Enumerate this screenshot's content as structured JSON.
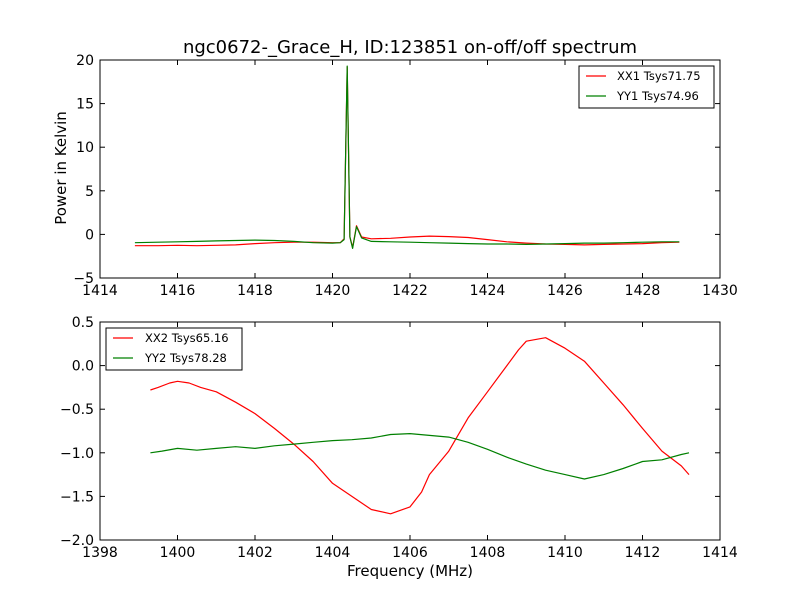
{
  "chart_data": [
    {
      "type": "line",
      "title": "ngc0672-_Grace_H, ID:123851 on-off/off spectrum",
      "xlabel": "",
      "ylabel": "Power in Kelvin",
      "xlim": [
        1414,
        1430
      ],
      "ylim": [
        -5,
        20
      ],
      "xticks": [
        1414,
        1416,
        1418,
        1420,
        1422,
        1424,
        1426,
        1428,
        1430
      ],
      "yticks": [
        -5,
        0,
        5,
        10,
        15,
        20
      ],
      "xtick_labels": [
        "1414",
        "1416",
        "1418",
        "1420",
        "1422",
        "1424",
        "1426",
        "1428",
        "1430"
      ],
      "ytick_labels": [
        "−5",
        "0",
        "5",
        "10",
        "15",
        "20"
      ],
      "grid": false,
      "legend_position": "top-right",
      "series": [
        {
          "name": "XX1 Tsys71.75",
          "color": "#ff0000",
          "points": [
            [
              1414.9,
              -1.3
            ],
            [
              1415.5,
              -1.3
            ],
            [
              1416.0,
              -1.25
            ],
            [
              1416.5,
              -1.3
            ],
            [
              1417.0,
              -1.25
            ],
            [
              1417.5,
              -1.2
            ],
            [
              1418.0,
              -1.05
            ],
            [
              1418.5,
              -0.95
            ],
            [
              1419.0,
              -0.9
            ],
            [
              1419.5,
              -0.9
            ],
            [
              1420.0,
              -0.95
            ],
            [
              1420.2,
              -0.95
            ],
            [
              1420.3,
              -0.5
            ],
            [
              1420.38,
              19.2
            ],
            [
              1420.45,
              -0.3
            ],
            [
              1420.52,
              -1.5
            ],
            [
              1420.62,
              1.0
            ],
            [
              1420.75,
              -0.3
            ],
            [
              1421.0,
              -0.5
            ],
            [
              1421.5,
              -0.45
            ],
            [
              1422.0,
              -0.3
            ],
            [
              1422.5,
              -0.2
            ],
            [
              1423.0,
              -0.25
            ],
            [
              1423.5,
              -0.35
            ],
            [
              1424.0,
              -0.6
            ],
            [
              1424.5,
              -0.85
            ],
            [
              1425.0,
              -1.0
            ],
            [
              1425.5,
              -1.1
            ],
            [
              1426.0,
              -1.15
            ],
            [
              1426.5,
              -1.2
            ],
            [
              1427.0,
              -1.15
            ],
            [
              1427.5,
              -1.1
            ],
            [
              1428.0,
              -1.05
            ],
            [
              1428.5,
              -0.95
            ],
            [
              1428.95,
              -0.9
            ]
          ]
        },
        {
          "name": "YY1 Tsys74.96",
          "color": "#008000",
          "points": [
            [
              1414.9,
              -0.95
            ],
            [
              1415.5,
              -0.9
            ],
            [
              1416.0,
              -0.85
            ],
            [
              1416.5,
              -0.8
            ],
            [
              1417.0,
              -0.75
            ],
            [
              1417.5,
              -0.7
            ],
            [
              1418.0,
              -0.65
            ],
            [
              1418.5,
              -0.7
            ],
            [
              1419.0,
              -0.8
            ],
            [
              1419.5,
              -0.95
            ],
            [
              1420.0,
              -1.0
            ],
            [
              1420.2,
              -0.95
            ],
            [
              1420.3,
              -0.6
            ],
            [
              1420.38,
              19.3
            ],
            [
              1420.45,
              -0.3
            ],
            [
              1420.52,
              -1.6
            ],
            [
              1420.62,
              0.9
            ],
            [
              1420.75,
              -0.4
            ],
            [
              1421.0,
              -0.8
            ],
            [
              1421.5,
              -0.85
            ],
            [
              1422.0,
              -0.9
            ],
            [
              1422.5,
              -0.95
            ],
            [
              1423.0,
              -1.0
            ],
            [
              1423.5,
              -1.05
            ],
            [
              1424.0,
              -1.1
            ],
            [
              1424.5,
              -1.1
            ],
            [
              1425.0,
              -1.15
            ],
            [
              1425.5,
              -1.1
            ],
            [
              1426.0,
              -1.05
            ],
            [
              1426.5,
              -1.0
            ],
            [
              1427.0,
              -1.0
            ],
            [
              1427.5,
              -0.95
            ],
            [
              1428.0,
              -0.9
            ],
            [
              1428.5,
              -0.85
            ],
            [
              1428.95,
              -0.85
            ]
          ]
        }
      ]
    },
    {
      "type": "line",
      "title": "",
      "xlabel": "Frequency (MHz)",
      "ylabel": "",
      "xlim": [
        1398,
        1414
      ],
      "ylim": [
        -2.0,
        0.5
      ],
      "xticks": [
        1398,
        1400,
        1402,
        1404,
        1406,
        1408,
        1410,
        1412,
        1414
      ],
      "yticks": [
        -2.0,
        -1.5,
        -1.0,
        -0.5,
        0.0,
        0.5
      ],
      "xtick_labels": [
        "1398",
        "1400",
        "1402",
        "1404",
        "1406",
        "1408",
        "1410",
        "1412",
        "1414"
      ],
      "ytick_labels": [
        "−2.0",
        "−1.5",
        "−1.0",
        "−0.5",
        "0.0",
        "0.5"
      ],
      "grid": false,
      "legend_position": "top-left",
      "series": [
        {
          "name": "XX2 Tsys65.16",
          "color": "#ff0000",
          "points": [
            [
              1399.3,
              -0.28
            ],
            [
              1399.5,
              -0.25
            ],
            [
              1399.8,
              -0.2
            ],
            [
              1400.0,
              -0.18
            ],
            [
              1400.3,
              -0.2
            ],
            [
              1400.6,
              -0.25
            ],
            [
              1401.0,
              -0.3
            ],
            [
              1401.5,
              -0.42
            ],
            [
              1402.0,
              -0.55
            ],
            [
              1402.5,
              -0.72
            ],
            [
              1403.0,
              -0.9
            ],
            [
              1403.5,
              -1.1
            ],
            [
              1404.0,
              -1.35
            ],
            [
              1404.5,
              -1.5
            ],
            [
              1405.0,
              -1.65
            ],
            [
              1405.5,
              -1.7
            ],
            [
              1406.0,
              -1.62
            ],
            [
              1406.3,
              -1.45
            ],
            [
              1406.5,
              -1.25
            ],
            [
              1407.0,
              -0.98
            ],
            [
              1407.5,
              -0.6
            ],
            [
              1408.0,
              -0.3
            ],
            [
              1408.5,
              0.0
            ],
            [
              1408.8,
              0.18
            ],
            [
              1409.0,
              0.28
            ],
            [
              1409.5,
              0.32
            ],
            [
              1410.0,
              0.2
            ],
            [
              1410.5,
              0.05
            ],
            [
              1411.0,
              -0.2
            ],
            [
              1411.5,
              -0.45
            ],
            [
              1412.0,
              -0.72
            ],
            [
              1412.5,
              -0.98
            ],
            [
              1413.0,
              -1.15
            ],
            [
              1413.2,
              -1.25
            ]
          ]
        },
        {
          "name": "YY2 Tsys78.28",
          "color": "#008000",
          "points": [
            [
              1399.3,
              -1.0
            ],
            [
              1399.6,
              -0.98
            ],
            [
              1400.0,
              -0.95
            ],
            [
              1400.5,
              -0.97
            ],
            [
              1401.0,
              -0.95
            ],
            [
              1401.5,
              -0.93
            ],
            [
              1402.0,
              -0.95
            ],
            [
              1402.5,
              -0.92
            ],
            [
              1403.0,
              -0.9
            ],
            [
              1403.5,
              -0.88
            ],
            [
              1404.0,
              -0.86
            ],
            [
              1404.5,
              -0.85
            ],
            [
              1405.0,
              -0.83
            ],
            [
              1405.5,
              -0.79
            ],
            [
              1406.0,
              -0.78
            ],
            [
              1406.5,
              -0.8
            ],
            [
              1407.0,
              -0.82
            ],
            [
              1407.5,
              -0.88
            ],
            [
              1408.0,
              -0.96
            ],
            [
              1408.5,
              -1.05
            ],
            [
              1409.0,
              -1.13
            ],
            [
              1409.5,
              -1.2
            ],
            [
              1410.0,
              -1.25
            ],
            [
              1410.5,
              -1.3
            ],
            [
              1411.0,
              -1.25
            ],
            [
              1411.5,
              -1.18
            ],
            [
              1412.0,
              -1.1
            ],
            [
              1412.5,
              -1.08
            ],
            [
              1413.0,
              -1.02
            ],
            [
              1413.2,
              -1.0
            ]
          ]
        }
      ]
    }
  ]
}
